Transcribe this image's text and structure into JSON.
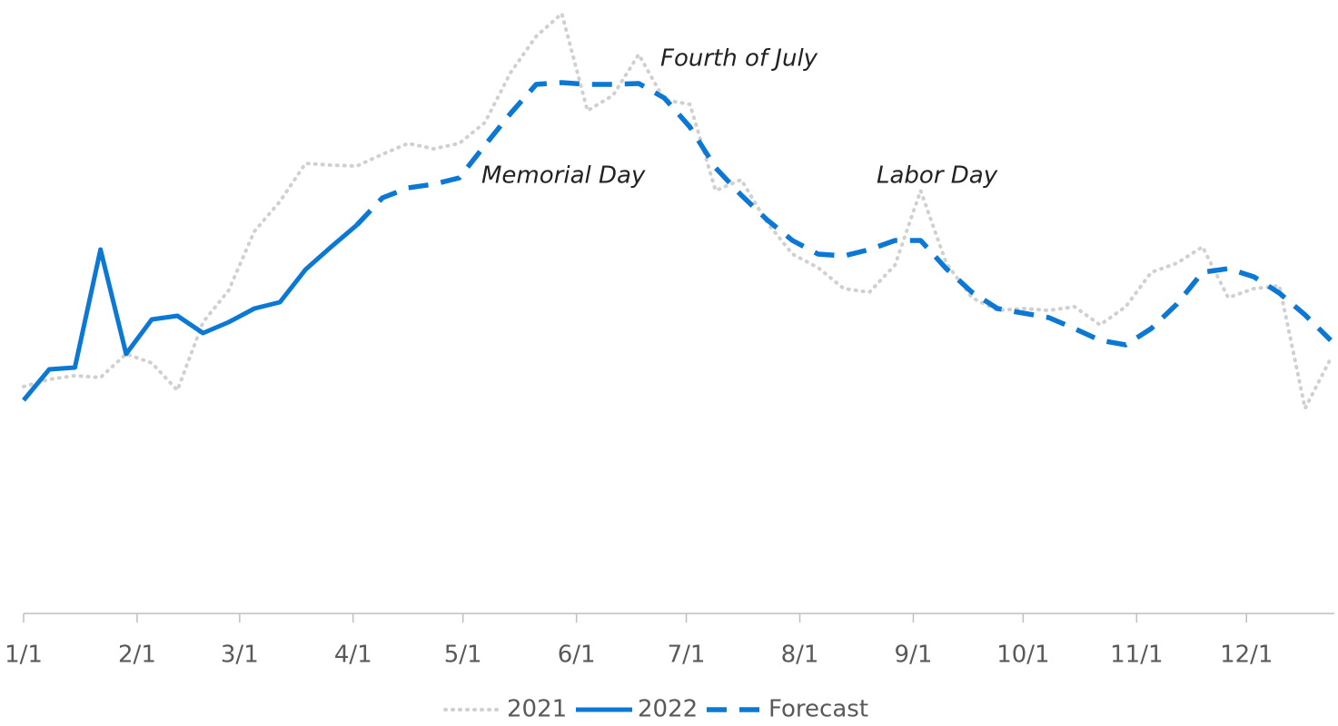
{
  "chart_data": {
    "type": "line",
    "x": [
      0,
      7,
      14,
      21,
      28,
      35,
      42,
      49,
      56,
      63,
      70,
      77,
      84,
      91,
      98,
      105,
      112,
      119,
      126,
      133,
      140,
      147,
      154,
      161,
      168,
      175,
      182,
      189,
      196,
      203,
      210,
      217,
      224,
      231,
      238,
      245,
      252,
      259,
      266,
      273,
      280,
      287,
      294,
      301,
      308,
      315,
      322,
      329,
      336,
      343,
      350,
      357
    ],
    "xlim": [
      0,
      358
    ],
    "xticks": [
      {
        "value": 0,
        "label": "1/1"
      },
      {
        "value": 31,
        "label": "2/1"
      },
      {
        "value": 59,
        "label": "3/1"
      },
      {
        "value": 90,
        "label": "4/1"
      },
      {
        "value": 120,
        "label": "5/1"
      },
      {
        "value": 151,
        "label": "6/1"
      },
      {
        "value": 181,
        "label": "7/1"
      },
      {
        "value": 212,
        "label": "8/1"
      },
      {
        "value": 243,
        "label": "9/1"
      },
      {
        "value": 273,
        "label": "10/1"
      },
      {
        "value": 304,
        "label": "11/1"
      },
      {
        "value": 334,
        "label": "12/1"
      }
    ],
    "ylim": [
      0,
      676
    ],
    "series": [
      {
        "name": "2021",
        "color": "#d0d0d0",
        "style": "dotted",
        "values": [
          250,
          258,
          262,
          260,
          286,
          276,
          246,
          321,
          356,
          421,
          454,
          496,
          494,
          493,
          506,
          518,
          512,
          518,
          541,
          596,
          636,
          661,
          554,
          571,
          616,
          566,
          561,
          466,
          478,
          431,
          396,
          381,
          358,
          354,
          384,
          466,
          386,
          348,
          334,
          336,
          334,
          338,
          318,
          338,
          376,
          386,
          404,
          348,
          358,
          361,
          226,
          281
        ]
      },
      {
        "name": "2022",
        "color": "#0a78d4",
        "style": "solid",
        "values": [
          235,
          269,
          271,
          401,
          286,
          324,
          328,
          309,
          321,
          336,
          343,
          379,
          404,
          428,
          null,
          null,
          null,
          null,
          null,
          null,
          null,
          null,
          null,
          null,
          null,
          null,
          null,
          null,
          null,
          null,
          null,
          null,
          null,
          null,
          null,
          null,
          null,
          null,
          null,
          null,
          null,
          null,
          null,
          null,
          null,
          null,
          null,
          null,
          null,
          null,
          null,
          null
        ]
      },
      {
        "name": "Forecast",
        "color": "#0a78d4",
        "style": "dashed",
        "values": [
          null,
          null,
          null,
          null,
          null,
          null,
          null,
          null,
          null,
          null,
          null,
          null,
          null,
          428,
          458,
          469,
          473,
          480,
          516,
          551,
          583,
          585,
          583,
          583,
          584,
          568,
          536,
          491,
          461,
          434,
          411,
          396,
          394,
          401,
          411,
          411,
          380,
          354,
          336,
          331,
          326,
          314,
          301,
          296,
          314,
          341,
          376,
          380,
          371,
          353,
          329,
          301
        ]
      }
    ],
    "annotations": [
      "Fourth of July",
      "Memorial Day",
      "Labor Day"
    ],
    "legend": "bottom"
  }
}
